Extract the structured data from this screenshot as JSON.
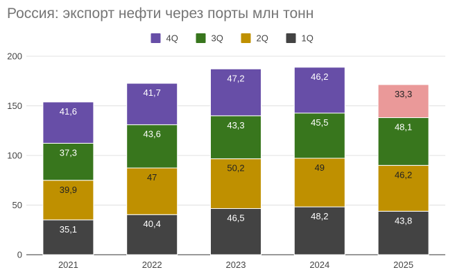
{
  "chart_data": {
    "type": "bar",
    "stacked": true,
    "title": "Россия: экспорт нефти через порты млн тонн",
    "xlabel": "",
    "ylabel": "",
    "ylim": [
      0,
      200
    ],
    "yticks": [
      "0",
      "50",
      "100",
      "150",
      "200"
    ],
    "categories": [
      "2021",
      "2022",
      "2023",
      "2024",
      "2025"
    ],
    "legend_position": "top-center",
    "legend_order": [
      3,
      2,
      1,
      0
    ],
    "series": [
      {
        "name": "1Q",
        "color": "#434343",
        "label_color": "#ffffff",
        "values": [
          35.1,
          40.4,
          46.5,
          48.2,
          43.8
        ],
        "labels": [
          "35,1",
          "40,4",
          "46,5",
          "48,2",
          "43,8"
        ]
      },
      {
        "name": "2Q",
        "color": "#bf9000",
        "label_color": "#222222",
        "values": [
          39.9,
          47,
          50.2,
          49,
          46.2
        ],
        "labels": [
          "39,9",
          "47",
          "50,2",
          "49",
          "46,2"
        ]
      },
      {
        "name": "3Q",
        "color": "#38761d",
        "label_color": "#ffffff",
        "values": [
          37.3,
          43.6,
          43.3,
          45.5,
          48.1
        ],
        "labels": [
          "37,3",
          "43,6",
          "43,3",
          "45,5",
          "48,1"
        ]
      },
      {
        "name": "4Q",
        "color": "#674ea7",
        "label_color": "#ffffff",
        "values": [
          41.6,
          41.7,
          47.2,
          46.2,
          33.3
        ],
        "labels": [
          "41,6",
          "41,7",
          "47,2",
          "46,2",
          "33,3"
        ],
        "point_colors": [
          null,
          null,
          null,
          null,
          "#ea9999"
        ],
        "point_label_colors": [
          null,
          null,
          null,
          null,
          "#222222"
        ]
      }
    ]
  }
}
